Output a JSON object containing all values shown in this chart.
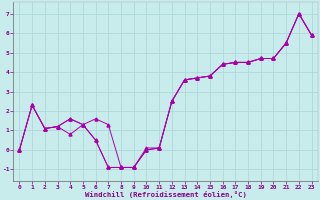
{
  "xlabel": "Windchill (Refroidissement éolien,°C)",
  "bg_color": "#c8ecec",
  "grid_color": "#b0d8d8",
  "line_color": "#aa00aa",
  "xlim": [
    -0.5,
    23.5
  ],
  "ylim": [
    -1.6,
    7.6
  ],
  "xticks": [
    0,
    1,
    2,
    3,
    4,
    5,
    6,
    7,
    8,
    9,
    10,
    11,
    12,
    13,
    14,
    15,
    16,
    17,
    18,
    19,
    20,
    21,
    22,
    23
  ],
  "yticks": [
    -1,
    0,
    1,
    2,
    3,
    4,
    5,
    6,
    7
  ],
  "x_vals": [
    0,
    1,
    2,
    3,
    4,
    5,
    6,
    7,
    8,
    9,
    10,
    11,
    12,
    13,
    14,
    15,
    16,
    17,
    18,
    19,
    20,
    21,
    22,
    23
  ],
  "y_line1": [
    0.0,
    2.3,
    1.1,
    1.2,
    1.6,
    1.3,
    1.6,
    1.3,
    -0.9,
    -0.9,
    0.0,
    0.1,
    2.5,
    3.6,
    3.7,
    3.8,
    4.4,
    4.5,
    4.5,
    4.7,
    4.7,
    5.5,
    7.0,
    5.9
  ],
  "y_line2": [
    0.0,
    2.3,
    1.1,
    1.2,
    0.8,
    1.3,
    0.5,
    -0.9,
    -0.9,
    -0.9,
    0.0,
    0.1,
    2.5,
    3.6,
    3.7,
    3.8,
    4.4,
    4.5,
    4.5,
    4.7,
    4.7,
    5.5,
    7.0,
    5.9
  ],
  "y_line3": [
    0.0,
    2.3,
    1.1,
    1.2,
    1.6,
    1.3,
    0.5,
    -0.9,
    -0.9,
    -0.9,
    0.1,
    0.1,
    2.5,
    3.6,
    3.7,
    3.8,
    4.4,
    4.5,
    4.5,
    4.7,
    4.7,
    5.5,
    7.0,
    5.9
  ],
  "label_fontsize": 4.8,
  "tick_fontsize": 4.5,
  "xlabel_fontsize": 5.2
}
